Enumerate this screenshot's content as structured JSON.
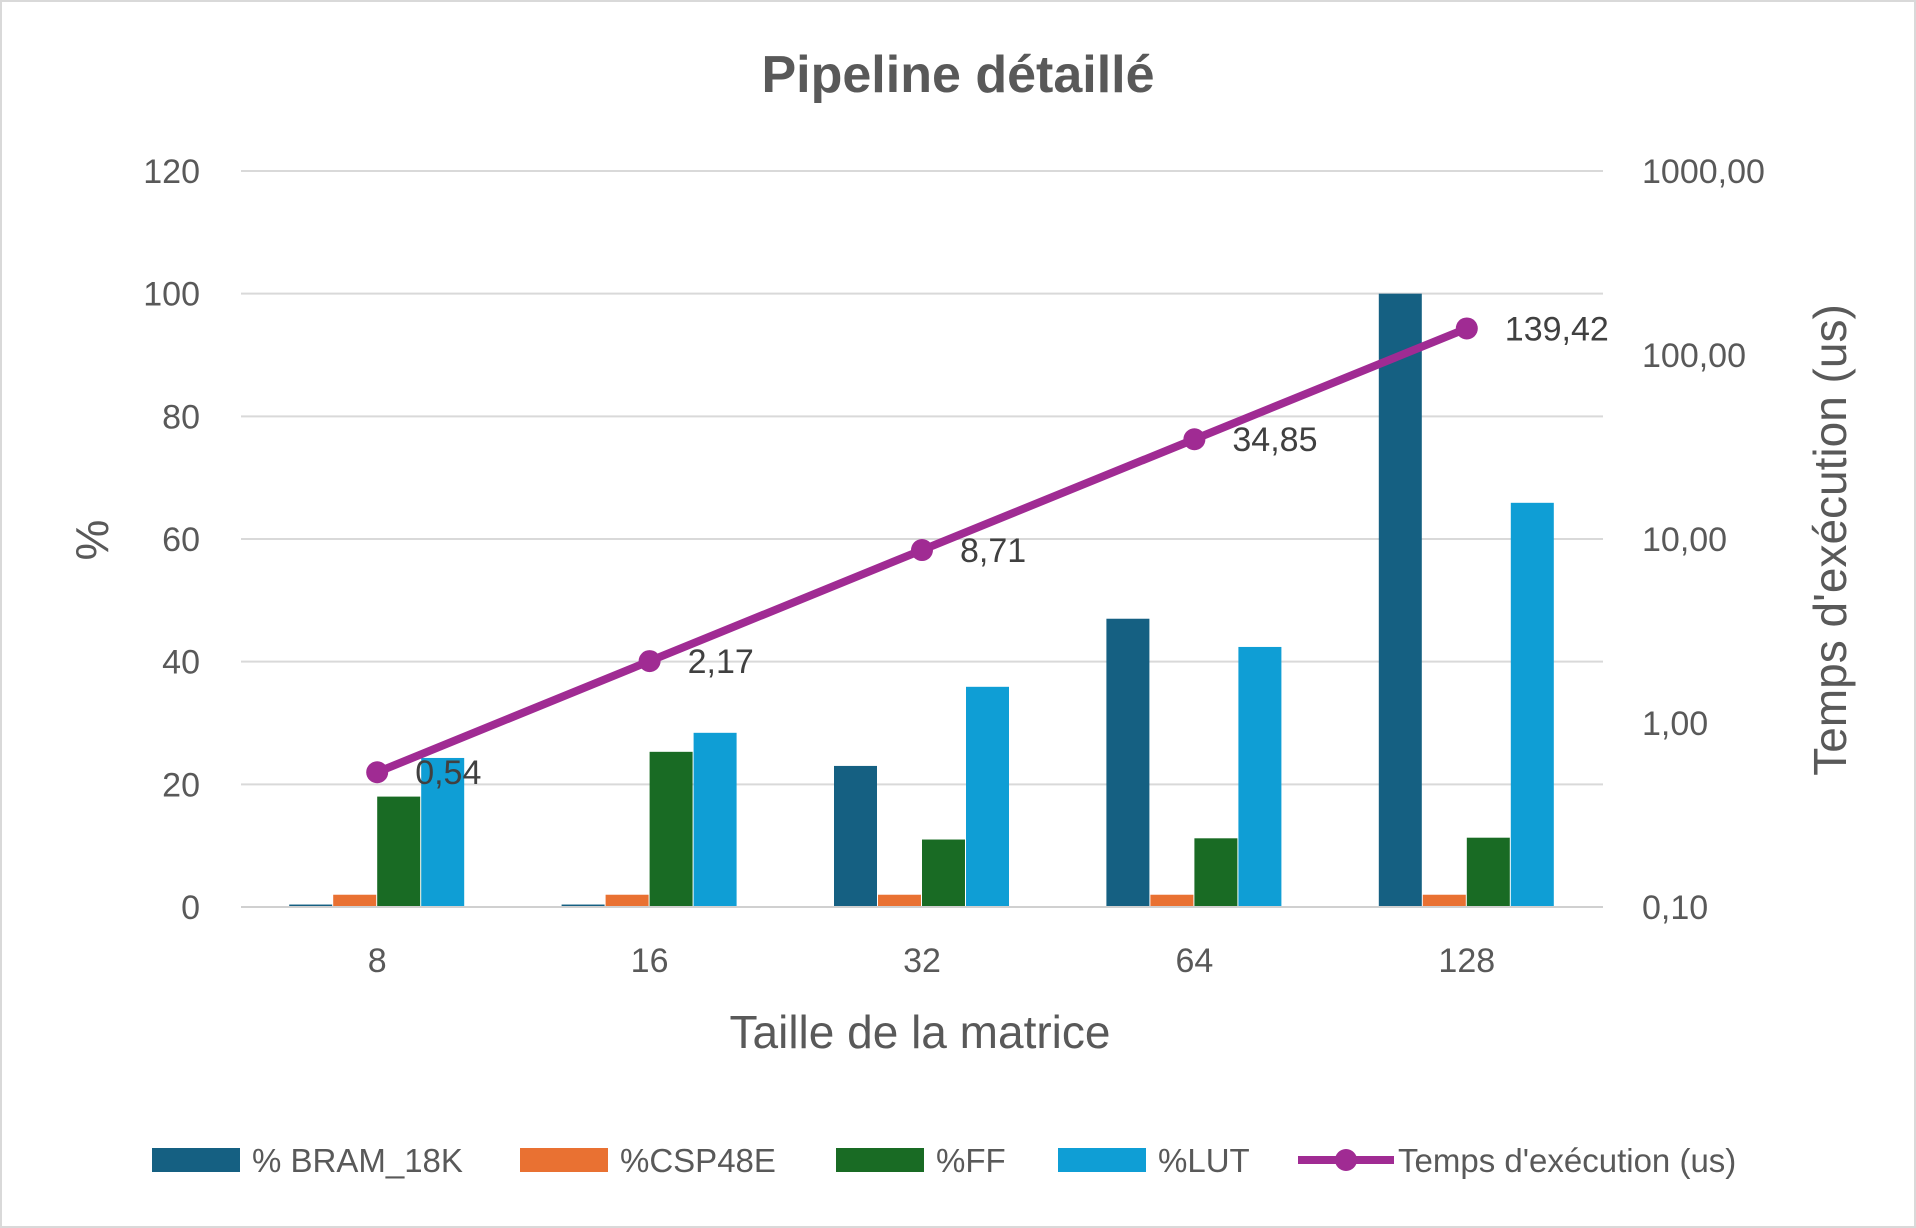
{
  "chart_data": {
    "type": "bar",
    "combo": "bar + line (secondary log axis)",
    "title": "Pipeline détaillé",
    "xlabel": "Taille de la matrice",
    "ylabel": "%",
    "y2label": "Temps d'exécution (us)",
    "categories": [
      "8",
      "16",
      "32",
      "64",
      "128"
    ],
    "ylim": [
      0,
      120
    ],
    "yticks": [
      "0",
      "20",
      "40",
      "60",
      "80",
      "100",
      "120"
    ],
    "y2lim": [
      0.1,
      1000
    ],
    "y2scale": "log",
    "y2ticks": [
      "0,10",
      "1,00",
      "10,00",
      "100,00",
      "1000,00"
    ],
    "grid": true,
    "legend": "bottom",
    "series": [
      {
        "name": "% BRAM_18K",
        "type": "bar",
        "axis": "primary",
        "color": "#156082",
        "values": [
          0.4,
          0.4,
          23,
          47,
          100
        ]
      },
      {
        "name": "%CSP48E",
        "type": "bar",
        "axis": "primary",
        "color": "#E97132",
        "values": [
          2,
          2,
          2,
          2,
          2
        ]
      },
      {
        "name": "%FF",
        "type": "bar",
        "axis": "primary",
        "color": "#196B24",
        "values": [
          18,
          25.3,
          11,
          11.2,
          11.3
        ]
      },
      {
        "name": "%LUT",
        "type": "bar",
        "axis": "primary",
        "color": "#0F9ED5",
        "values": [
          24.3,
          28.4,
          35.9,
          42.4,
          65.9
        ]
      },
      {
        "name": "Temps d'exécution (us)",
        "type": "line",
        "axis": "secondary",
        "color": "#A02B93",
        "values": [
          0.54,
          2.17,
          8.71,
          34.85,
          139.42
        ],
        "labels": [
          "0,54",
          "2,17",
          "8,71",
          "34,85",
          "139,42"
        ]
      }
    ]
  }
}
